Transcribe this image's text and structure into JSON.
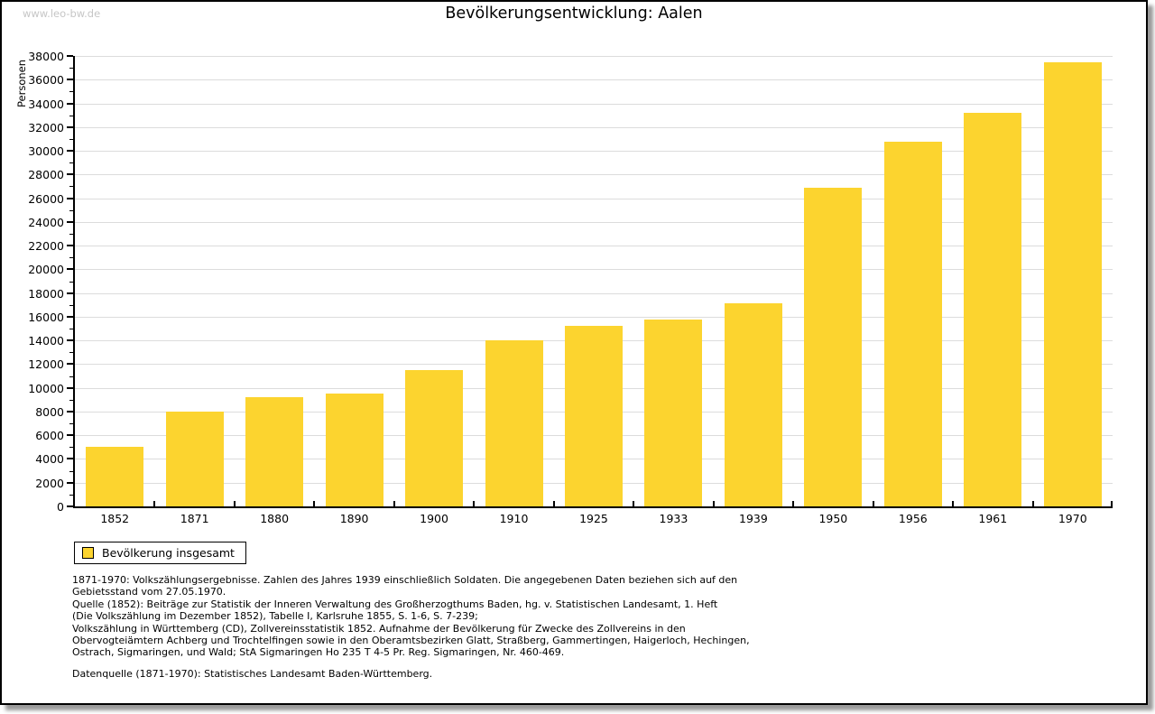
{
  "watermark": "www.leo-bw.de",
  "title": "Bevölkerungsentwicklung: Aalen",
  "chart_data": {
    "type": "bar",
    "title": "Bevölkerungsentwicklung: Aalen",
    "xlabel": "",
    "ylabel": "Personen",
    "ylim": [
      0,
      38000
    ],
    "ytick_step": 2000,
    "yminor_step": 1000,
    "grid": true,
    "bar_color": "#FCD42F",
    "categories": [
      "1852",
      "1871",
      "1880",
      "1890",
      "1900",
      "1910",
      "1925",
      "1933",
      "1939",
      "1950",
      "1956",
      "1961",
      "1970"
    ],
    "values": [
      5000,
      8000,
      9200,
      9500,
      11500,
      14000,
      15200,
      15800,
      17100,
      26900,
      30800,
      33200,
      37500
    ],
    "legend": {
      "label": "Bevölkerung insgesamt",
      "position": "bottom-left"
    }
  },
  "footnotes": {
    "lines": [
      "1871-1970: Volkszählungsergebnisse. Zahlen des Jahres 1939 einschließlich Soldaten. Die angegebenen Daten beziehen sich auf den",
      "Gebietsstand vom 27.05.1970.",
      "Quelle (1852): Beiträge zur Statistik der Inneren Verwaltung des Großherzogthums Baden, hg. v. Statistischen Landesamt, 1. Heft",
      "(Die Volkszählung im Dezember 1852), Tabelle I, Karlsruhe 1855, S. 1-6, S. 7-239;",
      "Volkszählung in Württemberg (CD), Zollvereinsstatistik 1852. Aufnahme der Bevölkerung für Zwecke des Zollvereins in den",
      "Obervogteiämtern Achberg und Trochtelfingen sowie in den Oberamtsbezirken Glatt, Straßberg, Gammertingen, Haigerloch, Hechingen,",
      "Ostrach, Sigmaringen, und Wald; StA Sigmaringen Ho 235 T 4-5 Pr. Reg. Sigmaringen, Nr. 460-469."
    ],
    "datasource": "Datenquelle (1871-1970): Statistisches Landesamt Baden-Württemberg."
  }
}
